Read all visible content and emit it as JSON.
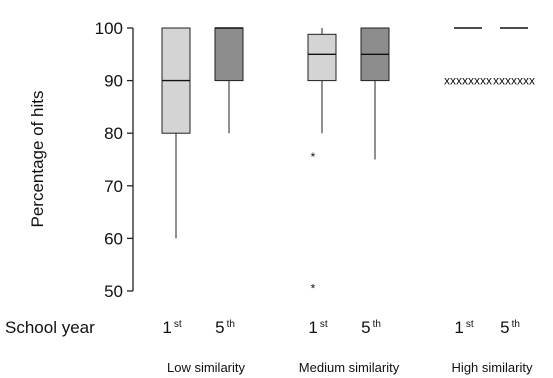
{
  "chart_data": {
    "type": "boxplot",
    "title": "",
    "ylabel": "Percentage of hits",
    "xlabel": "School year",
    "ylim": [
      50,
      100
    ],
    "yticks": [
      50,
      60,
      70,
      80,
      90,
      100
    ],
    "groups": [
      {
        "label": "Low similarity",
        "boxes": [
          {
            "year": "1",
            "suffix": "st",
            "fill": "#d4d4d4",
            "whisker_low": 60,
            "q1": 80,
            "median": 90,
            "q3": 100,
            "whisker_high": 100,
            "outliers": []
          },
          {
            "year": "5",
            "suffix": "th",
            "fill": "#8c8c8c",
            "whisker_low": 80,
            "q1": 90,
            "median": 100,
            "q3": 100,
            "whisker_high": 100,
            "outliers": []
          }
        ]
      },
      {
        "label": "Medium similarity",
        "boxes": [
          {
            "year": "1",
            "suffix": "st",
            "fill": "#d4d4d4",
            "whisker_low": 80,
            "q1": 90,
            "median": 95,
            "q3": 98.8,
            "whisker_high": 100,
            "outliers": [
              76,
              51
            ]
          },
          {
            "year": "5",
            "suffix": "th",
            "fill": "#8c8c8c",
            "whisker_low": 75,
            "q1": 90,
            "median": 95,
            "q3": 100,
            "whisker_high": 100,
            "outliers": []
          }
        ]
      },
      {
        "label": "High similarity",
        "boxes": [
          {
            "year": "1",
            "suffix": "st",
            "fill": "#d4d4d4",
            "whisker_low": 100,
            "q1": 100,
            "median": 100,
            "q3": 100,
            "whisker_high": 100,
            "outliers": [],
            "cluster": 90,
            "cluster_marks": "xxxxxxxx"
          },
          {
            "year": "5",
            "suffix": "th",
            "fill": "#8c8c8c",
            "whisker_low": 100,
            "q1": 100,
            "median": 100,
            "q3": 100,
            "whisker_high": 100,
            "outliers": [],
            "cluster": 90,
            "cluster_marks": "xxxxxxx"
          }
        ]
      }
    ],
    "outlier_symbol": "*"
  }
}
